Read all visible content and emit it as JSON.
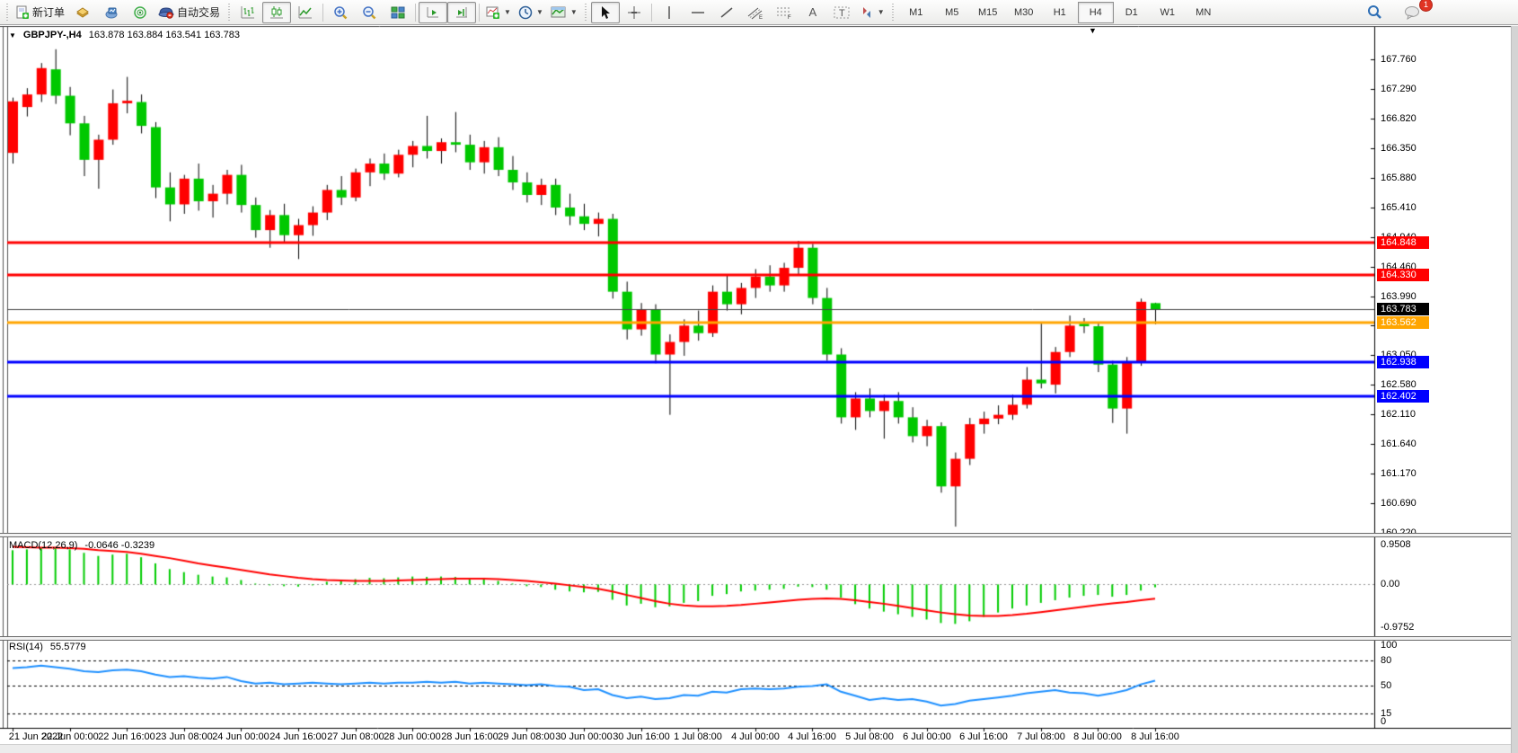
{
  "toolbar": {
    "new_order": "新订单",
    "autotrading": "自动交易",
    "periods": [
      "M1",
      "M5",
      "M15",
      "M30",
      "H1",
      "H4",
      "D1",
      "W1",
      "MN"
    ],
    "active_period": "H4",
    "notification_count": "1"
  },
  "chart": {
    "symbol_period": "GBPJPY-,H4",
    "ohlc_text": "163.878 163.884 163.541 163.783",
    "shift_marker": "▼",
    "title_caret": "▼",
    "price_axis_labels": [
      "167.760",
      "167.290",
      "166.820",
      "166.350",
      "165.880",
      "165.410",
      "164.940",
      "164.460",
      "163.990",
      "163.520",
      "163.050",
      "162.580",
      "162.110",
      "161.640",
      "161.170",
      "160.690",
      "160.220"
    ],
    "time_axis_labels": [
      "21 Jun 2022",
      "22 Jun 00:00",
      "22 Jun 16:00",
      "23 Jun 08:00",
      "24 Jun 00:00",
      "24 Jun 16:00",
      "27 Jun 08:00",
      "28 Jun 00:00",
      "28 Jun 16:00",
      "29 Jun 08:00",
      "30 Jun 00:00",
      "30 Jun 16:00",
      "1 Jul 08:00",
      "4 Jul 00:00",
      "4 Jul 16:00",
      "5 Jul 08:00",
      "6 Jul 00:00",
      "6 Jul 16:00",
      "7 Jul 08:00",
      "8 Jul 00:00",
      "8 Jul 16:00"
    ],
    "hlines": [
      {
        "price": 164.848,
        "label": "164.848",
        "color": "#FF0000"
      },
      {
        "price": 164.33,
        "label": "164.330",
        "color": "#FF0000"
      },
      {
        "price": 163.562,
        "label": "163.562",
        "color": "#FFA500"
      },
      {
        "price": 162.938,
        "label": "162.938",
        "color": "#0000FF"
      },
      {
        "price": 162.402,
        "label": "162.402",
        "color": "#0000FF"
      }
    ],
    "current_price": {
      "price": 163.783,
      "label": "163.783",
      "line_color": "#444444",
      "badge_bg": "#000000"
    }
  },
  "chart_data": {
    "type": "candlestick",
    "symbol": "GBPJPY-",
    "timeframe": "H4",
    "title": "GBPJPY-,H4 163.878 163.884 163.541 163.783",
    "price_axis_top": 167.76,
    "price_axis_bottom": 160.22,
    "bull_color": "#FF0000",
    "bear_color": "#00C800",
    "wick_color": "#000000",
    "ohlc": [
      [
        166.27,
        167.15,
        166.1,
        167.09
      ],
      [
        167.0,
        167.3,
        166.85,
        167.2
      ],
      [
        167.2,
        167.7,
        167.08,
        167.62
      ],
      [
        167.6,
        167.92,
        167.05,
        167.18
      ],
      [
        167.18,
        167.32,
        166.55,
        166.74
      ],
      [
        166.74,
        166.86,
        165.9,
        166.16
      ],
      [
        166.16,
        166.56,
        165.7,
        166.48
      ],
      [
        166.48,
        167.28,
        166.4,
        167.06
      ],
      [
        167.06,
        167.48,
        166.9,
        167.1
      ],
      [
        167.08,
        167.2,
        166.58,
        166.7
      ],
      [
        166.68,
        166.76,
        165.55,
        165.72
      ],
      [
        165.72,
        165.96,
        165.18,
        165.45
      ],
      [
        165.45,
        165.92,
        165.3,
        165.86
      ],
      [
        165.86,
        166.1,
        165.35,
        165.5
      ],
      [
        165.5,
        165.76,
        165.24,
        165.62
      ],
      [
        165.62,
        166.0,
        165.45,
        165.92
      ],
      [
        165.92,
        166.08,
        165.32,
        165.44
      ],
      [
        165.44,
        165.56,
        164.92,
        165.04
      ],
      [
        165.04,
        165.36,
        164.76,
        165.28
      ],
      [
        165.28,
        165.46,
        164.84,
        164.96
      ],
      [
        164.96,
        165.22,
        164.58,
        165.12
      ],
      [
        165.12,
        165.42,
        164.95,
        165.32
      ],
      [
        165.32,
        165.76,
        165.2,
        165.68
      ],
      [
        165.68,
        165.9,
        165.44,
        165.56
      ],
      [
        165.56,
        166.02,
        165.5,
        165.96
      ],
      [
        165.96,
        166.18,
        165.74,
        166.1
      ],
      [
        166.1,
        166.26,
        165.84,
        165.94
      ],
      [
        165.94,
        166.32,
        165.88,
        166.24
      ],
      [
        166.24,
        166.46,
        166.04,
        166.38
      ],
      [
        166.38,
        166.86,
        166.18,
        166.3
      ],
      [
        166.3,
        166.5,
        166.1,
        166.44
      ],
      [
        166.44,
        166.92,
        166.28,
        166.4
      ],
      [
        166.4,
        166.56,
        166.0,
        166.12
      ],
      [
        166.12,
        166.46,
        165.94,
        166.36
      ],
      [
        166.36,
        166.52,
        165.9,
        166.0
      ],
      [
        166.0,
        166.22,
        165.68,
        165.8
      ],
      [
        165.8,
        165.96,
        165.48,
        165.6
      ],
      [
        165.6,
        165.86,
        165.44,
        165.76
      ],
      [
        165.76,
        165.86,
        165.28,
        165.4
      ],
      [
        165.4,
        165.62,
        165.12,
        165.26
      ],
      [
        165.26,
        165.46,
        165.04,
        165.14
      ],
      [
        165.14,
        165.32,
        164.94,
        165.22
      ],
      [
        165.22,
        165.3,
        163.95,
        164.06
      ],
      [
        164.06,
        164.22,
        163.3,
        163.46
      ],
      [
        163.46,
        163.88,
        163.36,
        163.78
      ],
      [
        163.78,
        163.86,
        162.92,
        163.06
      ],
      [
        163.06,
        163.38,
        162.1,
        163.26
      ],
      [
        163.26,
        163.62,
        163.04,
        163.52
      ],
      [
        163.52,
        163.76,
        163.28,
        163.4
      ],
      [
        163.4,
        164.16,
        163.34,
        164.06
      ],
      [
        164.06,
        164.32,
        163.76,
        163.86
      ],
      [
        163.86,
        164.2,
        163.7,
        164.12
      ],
      [
        164.12,
        164.42,
        163.96,
        164.3
      ],
      [
        164.3,
        164.48,
        164.06,
        164.16
      ],
      [
        164.16,
        164.52,
        164.06,
        164.44
      ],
      [
        164.44,
        164.87,
        164.32,
        164.76
      ],
      [
        164.76,
        164.82,
        163.86,
        163.96
      ],
      [
        163.96,
        164.12,
        162.96,
        163.06
      ],
      [
        163.06,
        163.16,
        161.96,
        162.06
      ],
      [
        162.06,
        162.46,
        161.86,
        162.36
      ],
      [
        162.36,
        162.52,
        162.06,
        162.16
      ],
      [
        162.16,
        162.42,
        161.72,
        162.32
      ],
      [
        162.32,
        162.46,
        161.96,
        162.06
      ],
      [
        162.06,
        162.22,
        161.66,
        161.76
      ],
      [
        161.76,
        162.02,
        161.6,
        161.92
      ],
      [
        161.92,
        161.98,
        160.86,
        160.96
      ],
      [
        160.96,
        161.5,
        160.32,
        161.4
      ],
      [
        161.4,
        162.05,
        161.3,
        161.95
      ],
      [
        161.95,
        162.15,
        161.8,
        162.04
      ],
      [
        162.04,
        162.25,
        161.95,
        162.1
      ],
      [
        162.1,
        162.42,
        162.02,
        162.26
      ],
      [
        162.26,
        162.86,
        162.2,
        162.66
      ],
      [
        162.66,
        163.56,
        162.52,
        162.6
      ],
      [
        162.58,
        163.18,
        162.44,
        163.1
      ],
      [
        163.1,
        163.68,
        163.02,
        163.52
      ],
      [
        163.55,
        163.64,
        163.4,
        163.51
      ],
      [
        163.51,
        163.56,
        162.78,
        162.9
      ],
      [
        162.9,
        162.96,
        161.97,
        162.2
      ],
      [
        162.2,
        163.02,
        161.8,
        162.94
      ],
      [
        162.94,
        163.95,
        162.88,
        163.9
      ],
      [
        163.878,
        163.884,
        163.541,
        163.783
      ]
    ],
    "indicators": {
      "macd": {
        "label": "MACD(12,26,9)",
        "values_text": "-0.0646 -0.3239",
        "axis_labels": [
          "0.9508",
          "0.00",
          "-0.9752"
        ],
        "axis_top": 0.9508,
        "axis_bottom": -0.9752,
        "histogram_color": "#00CC00",
        "signal_color": "#FF0000",
        "histogram": [
          0.78,
          0.8,
          0.83,
          0.85,
          0.8,
          0.72,
          0.65,
          0.68,
          0.7,
          0.62,
          0.48,
          0.35,
          0.28,
          0.22,
          0.18,
          0.16,
          0.1,
          0.02,
          -0.02,
          -0.04,
          -0.05,
          0.0,
          0.06,
          0.08,
          0.12,
          0.15,
          0.14,
          0.16,
          0.18,
          0.17,
          0.18,
          0.17,
          0.12,
          0.12,
          0.08,
          0.02,
          -0.04,
          -0.06,
          -0.12,
          -0.16,
          -0.18,
          -0.17,
          -0.35,
          -0.48,
          -0.44,
          -0.52,
          -0.5,
          -0.42,
          -0.38,
          -0.26,
          -0.22,
          -0.16,
          -0.14,
          -0.12,
          -0.1,
          -0.05,
          -0.06,
          -0.12,
          -0.3,
          -0.45,
          -0.55,
          -0.62,
          -0.68,
          -0.74,
          -0.8,
          -0.88,
          -0.9,
          -0.84,
          -0.74,
          -0.64,
          -0.55,
          -0.48,
          -0.42,
          -0.36,
          -0.3,
          -0.26,
          -0.24,
          -0.28,
          -0.24,
          -0.14,
          -0.0646
        ],
        "signal": [
          0.86,
          0.85,
          0.84,
          0.84,
          0.83,
          0.81,
          0.78,
          0.76,
          0.74,
          0.7,
          0.65,
          0.6,
          0.54,
          0.48,
          0.43,
          0.38,
          0.33,
          0.28,
          0.23,
          0.19,
          0.15,
          0.12,
          0.1,
          0.09,
          0.08,
          0.08,
          0.08,
          0.09,
          0.1,
          0.11,
          0.12,
          0.13,
          0.13,
          0.13,
          0.12,
          0.1,
          0.08,
          0.05,
          0.02,
          -0.02,
          -0.06,
          -0.1,
          -0.16,
          -0.24,
          -0.31,
          -0.38,
          -0.44,
          -0.48,
          -0.5,
          -0.5,
          -0.49,
          -0.47,
          -0.44,
          -0.41,
          -0.38,
          -0.35,
          -0.33,
          -0.32,
          -0.33,
          -0.36,
          -0.4,
          -0.44,
          -0.49,
          -0.54,
          -0.59,
          -0.64,
          -0.68,
          -0.71,
          -0.72,
          -0.72,
          -0.7,
          -0.67,
          -0.63,
          -0.59,
          -0.55,
          -0.51,
          -0.47,
          -0.43,
          -0.4,
          -0.36,
          -0.3239
        ]
      },
      "rsi": {
        "label": "RSI(14)",
        "value_text": "55.5779",
        "axis_labels": [
          "100",
          "80",
          "50",
          "15",
          "0"
        ],
        "axis_values": [
          100,
          80,
          50,
          15,
          0
        ],
        "levels": [
          80,
          50,
          15
        ],
        "line_color": "#1E90FF",
        "values": [
          71,
          72,
          74,
          72,
          70,
          67,
          66,
          68,
          69,
          67,
          63,
          60,
          61,
          59,
          58,
          60,
          55,
          52,
          53,
          51,
          52,
          53,
          52,
          51,
          52,
          53,
          52,
          53,
          53,
          54,
          53,
          54,
          52,
          53,
          52,
          51,
          50,
          51,
          49,
          48,
          44,
          45,
          38,
          34,
          36,
          33,
          34,
          38,
          37,
          42,
          41,
          45,
          46,
          45,
          46,
          48,
          49,
          51,
          42,
          37,
          32,
          34,
          32,
          33,
          30,
          25,
          27,
          31,
          33,
          35,
          37,
          40,
          42,
          44,
          41,
          40,
          37,
          40,
          44,
          51,
          55.58
        ]
      }
    }
  }
}
